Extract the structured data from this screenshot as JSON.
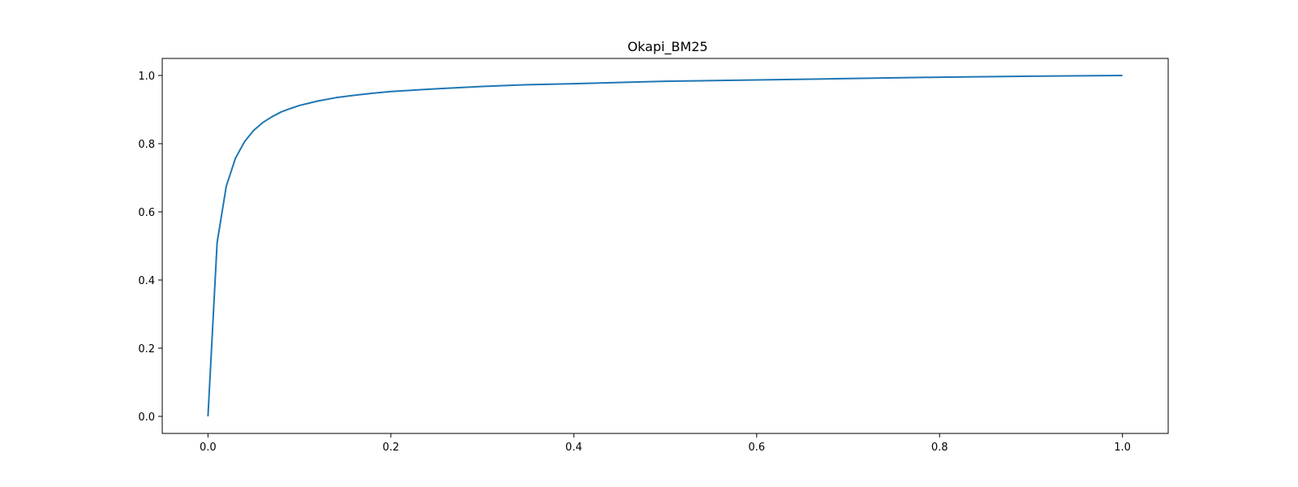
{
  "chart_data": {
    "type": "line",
    "title": "Okapi_BM25",
    "xlabel": "",
    "ylabel": "",
    "xlim": [
      -0.05,
      1.05
    ],
    "ylim": [
      -0.05,
      1.05
    ],
    "xticks": [
      0.0,
      0.2,
      0.4,
      0.6,
      0.8,
      1.0
    ],
    "xtick_labels": [
      "0.0",
      "0.2",
      "0.4",
      "0.6",
      "0.8",
      "1.0"
    ],
    "yticks": [
      0.0,
      0.2,
      0.4,
      0.6,
      0.8,
      1.0
    ],
    "ytick_labels": [
      "0.0",
      "0.2",
      "0.4",
      "0.6",
      "0.8",
      "1.0"
    ],
    "grid": false,
    "series": [
      {
        "color": "#1f77b4",
        "x": [
          0.0,
          0.01,
          0.02,
          0.03,
          0.04,
          0.05,
          0.06,
          0.07,
          0.08,
          0.09,
          0.1,
          0.12,
          0.14,
          0.16,
          0.18,
          0.2,
          0.25,
          0.3,
          0.35,
          0.4,
          0.5,
          0.6,
          0.7,
          0.8,
          0.9,
          1.0
        ],
        "y": [
          0.0,
          0.51,
          0.675,
          0.757,
          0.806,
          0.839,
          0.862,
          0.879,
          0.893,
          0.903,
          0.912,
          0.925,
          0.935,
          0.942,
          0.948,
          0.953,
          0.961,
          0.968,
          0.973,
          0.976,
          0.983,
          0.987,
          0.991,
          0.995,
          0.998,
          1.0
        ]
      }
    ]
  }
}
